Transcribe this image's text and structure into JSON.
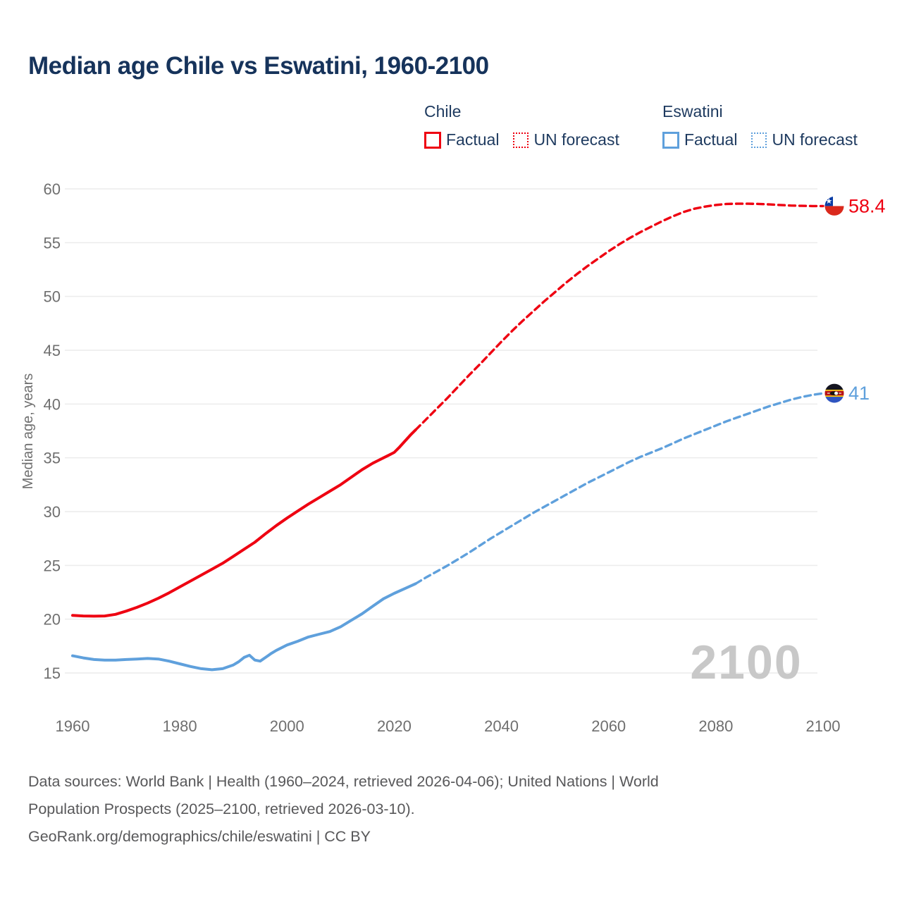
{
  "header": {
    "title": "Median age Chile vs Eswatini, 1960-2100"
  },
  "legend": {
    "groups": [
      {
        "name": "Chile",
        "color": "#ee0011",
        "items": [
          {
            "label": "Factual",
            "style": "solid"
          },
          {
            "label": "UN forecast",
            "style": "dotted"
          }
        ]
      },
      {
        "name": "Eswatini",
        "color": "#5fa0dc",
        "items": [
          {
            "label": "Factual",
            "style": "solid"
          },
          {
            "label": "UN forecast",
            "style": "dotted"
          }
        ]
      }
    ]
  },
  "chart_data": {
    "type": "line",
    "title": "Median age Chile vs Eswatini, 1960-2100",
    "xlabel": "",
    "ylabel": "Median age, years",
    "xlim": [
      1960,
      2100
    ],
    "ylim": [
      15,
      60
    ],
    "x_ticks": [
      1960,
      1980,
      2000,
      2020,
      2040,
      2060,
      2080,
      2100
    ],
    "y_ticks": [
      15,
      20,
      25,
      30,
      35,
      40,
      45,
      50,
      55,
      60
    ],
    "grid": "horizontal",
    "legend_position": "top",
    "watermark": "2100",
    "series": [
      {
        "name": "Chile factual",
        "color": "#ee0011",
        "style": "solid",
        "points": [
          [
            1960,
            20.35
          ],
          [
            1962,
            20.3
          ],
          [
            1964,
            20.28
          ],
          [
            1966,
            20.3
          ],
          [
            1968,
            20.45
          ],
          [
            1970,
            20.75
          ],
          [
            1972,
            21.1
          ],
          [
            1974,
            21.5
          ],
          [
            1976,
            21.95
          ],
          [
            1978,
            22.45
          ],
          [
            1980,
            23.0
          ],
          [
            1982,
            23.55
          ],
          [
            1984,
            24.1
          ],
          [
            1986,
            24.65
          ],
          [
            1988,
            25.2
          ],
          [
            1990,
            25.85
          ],
          [
            1992,
            26.5
          ],
          [
            1994,
            27.15
          ],
          [
            1996,
            27.95
          ],
          [
            1998,
            28.7
          ],
          [
            2000,
            29.4
          ],
          [
            2002,
            30.05
          ],
          [
            2004,
            30.7
          ],
          [
            2006,
            31.3
          ],
          [
            2008,
            31.9
          ],
          [
            2010,
            32.5
          ],
          [
            2012,
            33.2
          ],
          [
            2014,
            33.9
          ],
          [
            2016,
            34.5
          ],
          [
            2017,
            34.75
          ],
          [
            2018,
            35.0
          ],
          [
            2019,
            35.25
          ],
          [
            2020,
            35.5
          ],
          [
            2021,
            36.0
          ],
          [
            2022,
            36.55
          ],
          [
            2023,
            37.1
          ],
          [
            2024,
            37.6
          ]
        ]
      },
      {
        "name": "Chile UN forecast",
        "color": "#ee0011",
        "style": "dashed",
        "points": [
          [
            2024,
            37.6
          ],
          [
            2026,
            38.6
          ],
          [
            2028,
            39.6
          ],
          [
            2030,
            40.6
          ],
          [
            2032,
            41.65
          ],
          [
            2034,
            42.7
          ],
          [
            2036,
            43.7
          ],
          [
            2038,
            44.75
          ],
          [
            2040,
            45.8
          ],
          [
            2042,
            46.8
          ],
          [
            2044,
            47.75
          ],
          [
            2046,
            48.65
          ],
          [
            2048,
            49.55
          ],
          [
            2050,
            50.4
          ],
          [
            2052,
            51.25
          ],
          [
            2054,
            52.05
          ],
          [
            2056,
            52.8
          ],
          [
            2058,
            53.5
          ],
          [
            2060,
            54.2
          ],
          [
            2062,
            54.85
          ],
          [
            2064,
            55.45
          ],
          [
            2066,
            56.0
          ],
          [
            2068,
            56.5
          ],
          [
            2070,
            57.0
          ],
          [
            2072,
            57.45
          ],
          [
            2074,
            57.85
          ],
          [
            2076,
            58.15
          ],
          [
            2078,
            58.35
          ],
          [
            2080,
            58.5
          ],
          [
            2082,
            58.6
          ],
          [
            2084,
            58.62
          ],
          [
            2086,
            58.62
          ],
          [
            2088,
            58.6
          ],
          [
            2090,
            58.55
          ],
          [
            2092,
            58.5
          ],
          [
            2094,
            58.45
          ],
          [
            2096,
            58.42
          ],
          [
            2098,
            58.4
          ],
          [
            2100,
            58.4
          ]
        ]
      },
      {
        "name": "Eswatini factual",
        "color": "#5fa0dc",
        "style": "solid",
        "points": [
          [
            1960,
            16.6
          ],
          [
            1962,
            16.4
          ],
          [
            1964,
            16.25
          ],
          [
            1966,
            16.2
          ],
          [
            1968,
            16.2
          ],
          [
            1970,
            16.25
          ],
          [
            1972,
            16.3
          ],
          [
            1974,
            16.35
          ],
          [
            1976,
            16.3
          ],
          [
            1978,
            16.1
          ],
          [
            1980,
            15.85
          ],
          [
            1982,
            15.6
          ],
          [
            1984,
            15.4
          ],
          [
            1986,
            15.3
          ],
          [
            1988,
            15.4
          ],
          [
            1990,
            15.75
          ],
          [
            1991,
            16.05
          ],
          [
            1992,
            16.45
          ],
          [
            1993,
            16.65
          ],
          [
            1994,
            16.2
          ],
          [
            1995,
            16.1
          ],
          [
            1996,
            16.45
          ],
          [
            1997,
            16.8
          ],
          [
            1998,
            17.1
          ],
          [
            2000,
            17.6
          ],
          [
            2002,
            17.95
          ],
          [
            2004,
            18.35
          ],
          [
            2006,
            18.6
          ],
          [
            2008,
            18.85
          ],
          [
            2010,
            19.3
          ],
          [
            2012,
            19.9
          ],
          [
            2014,
            20.5
          ],
          [
            2016,
            21.2
          ],
          [
            2018,
            21.9
          ],
          [
            2020,
            22.4
          ],
          [
            2022,
            22.85
          ],
          [
            2024,
            23.3
          ]
        ]
      },
      {
        "name": "Eswatini UN forecast",
        "color": "#5fa0dc",
        "style": "dashed",
        "points": [
          [
            2024,
            23.3
          ],
          [
            2026,
            23.9
          ],
          [
            2028,
            24.45
          ],
          [
            2030,
            25.0
          ],
          [
            2032,
            25.6
          ],
          [
            2034,
            26.2
          ],
          [
            2036,
            26.85
          ],
          [
            2038,
            27.5
          ],
          [
            2040,
            28.1
          ],
          [
            2042,
            28.7
          ],
          [
            2044,
            29.3
          ],
          [
            2046,
            29.9
          ],
          [
            2048,
            30.45
          ],
          [
            2050,
            31.0
          ],
          [
            2052,
            31.55
          ],
          [
            2054,
            32.1
          ],
          [
            2056,
            32.65
          ],
          [
            2058,
            33.15
          ],
          [
            2060,
            33.65
          ],
          [
            2062,
            34.15
          ],
          [
            2064,
            34.65
          ],
          [
            2066,
            35.1
          ],
          [
            2068,
            35.5
          ],
          [
            2070,
            35.9
          ],
          [
            2072,
            36.35
          ],
          [
            2074,
            36.8
          ],
          [
            2076,
            37.2
          ],
          [
            2078,
            37.6
          ],
          [
            2080,
            38.0
          ],
          [
            2082,
            38.4
          ],
          [
            2084,
            38.75
          ],
          [
            2086,
            39.1
          ],
          [
            2088,
            39.45
          ],
          [
            2090,
            39.8
          ],
          [
            2092,
            40.1
          ],
          [
            2094,
            40.4
          ],
          [
            2096,
            40.65
          ],
          [
            2098,
            40.85
          ],
          [
            2100,
            41.0
          ]
        ]
      }
    ],
    "end_labels": [
      {
        "series": "Chile",
        "label": "58.4",
        "value": 58.4,
        "color": "#ee0011",
        "flag": "chile-flag-icon"
      },
      {
        "series": "Eswatini",
        "label": "41",
        "value": 41,
        "color": "#5fa0dc",
        "flag": "eswatini-flag-icon"
      }
    ]
  },
  "colors": {
    "title": "#16335b",
    "legend_text": "#1e3a5f",
    "axis_text": "#6f6f6f",
    "gridline": "#ececec",
    "watermark": "#c8c8c8",
    "chile": "#ee0011",
    "eswatini": "#5fa0dc"
  },
  "footer": {
    "lines": [
      "Data sources: World Bank | Health (1960–2024, retrieved 2026-04-06); United Nations | World",
      "Population Prospects (2025–2100, retrieved 2026-03-10).",
      "GeoRank.org/demographics/chile/eswatini | CC BY"
    ]
  }
}
